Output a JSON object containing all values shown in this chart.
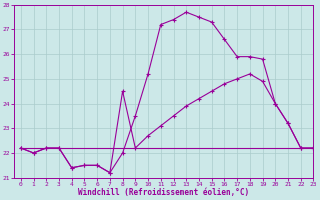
{
  "background_color": "#cce8e8",
  "grid_color": "#aacccc",
  "line_color": "#990099",
  "xlabel": "Windchill (Refroidissement éolien,°C)",
  "xlabel_color": "#990099",
  "ylim": [
    21,
    28
  ],
  "xlim": [
    -0.5,
    23
  ],
  "yticks": [
    21,
    22,
    23,
    24,
    25,
    26,
    27,
    28
  ],
  "xticks": [
    0,
    1,
    2,
    3,
    4,
    5,
    6,
    7,
    8,
    9,
    10,
    11,
    12,
    13,
    14,
    15,
    16,
    17,
    18,
    19,
    20,
    21,
    22,
    23
  ],
  "curve1_x": [
    0,
    1,
    2,
    3,
    4,
    5,
    6,
    7,
    8,
    9,
    10,
    11,
    12,
    13,
    14,
    15,
    16,
    17,
    18,
    19,
    20,
    21,
    22,
    23
  ],
  "curve1_y": [
    22.2,
    22.0,
    22.2,
    22.2,
    21.4,
    21.5,
    21.5,
    21.2,
    22.0,
    23.5,
    25.2,
    27.2,
    27.4,
    27.7,
    27.5,
    27.3,
    26.6,
    25.9,
    25.9,
    25.8,
    24.0,
    23.2,
    22.2,
    22.2
  ],
  "curve2_x": [
    0,
    1,
    2,
    3,
    4,
    5,
    6,
    7,
    8,
    9,
    10,
    11,
    12,
    13,
    14,
    15,
    16,
    17,
    18,
    19,
    20,
    21,
    22,
    23
  ],
  "curve2_y": [
    22.2,
    22.0,
    22.2,
    22.2,
    21.4,
    21.5,
    21.5,
    21.2,
    24.5,
    22.2,
    22.7,
    23.1,
    23.5,
    23.9,
    24.2,
    24.5,
    24.8,
    25.0,
    25.2,
    24.9,
    24.0,
    23.2,
    22.2,
    22.2
  ],
  "curve3_x": [
    0,
    23
  ],
  "curve3_y": [
    22.2,
    22.2
  ]
}
